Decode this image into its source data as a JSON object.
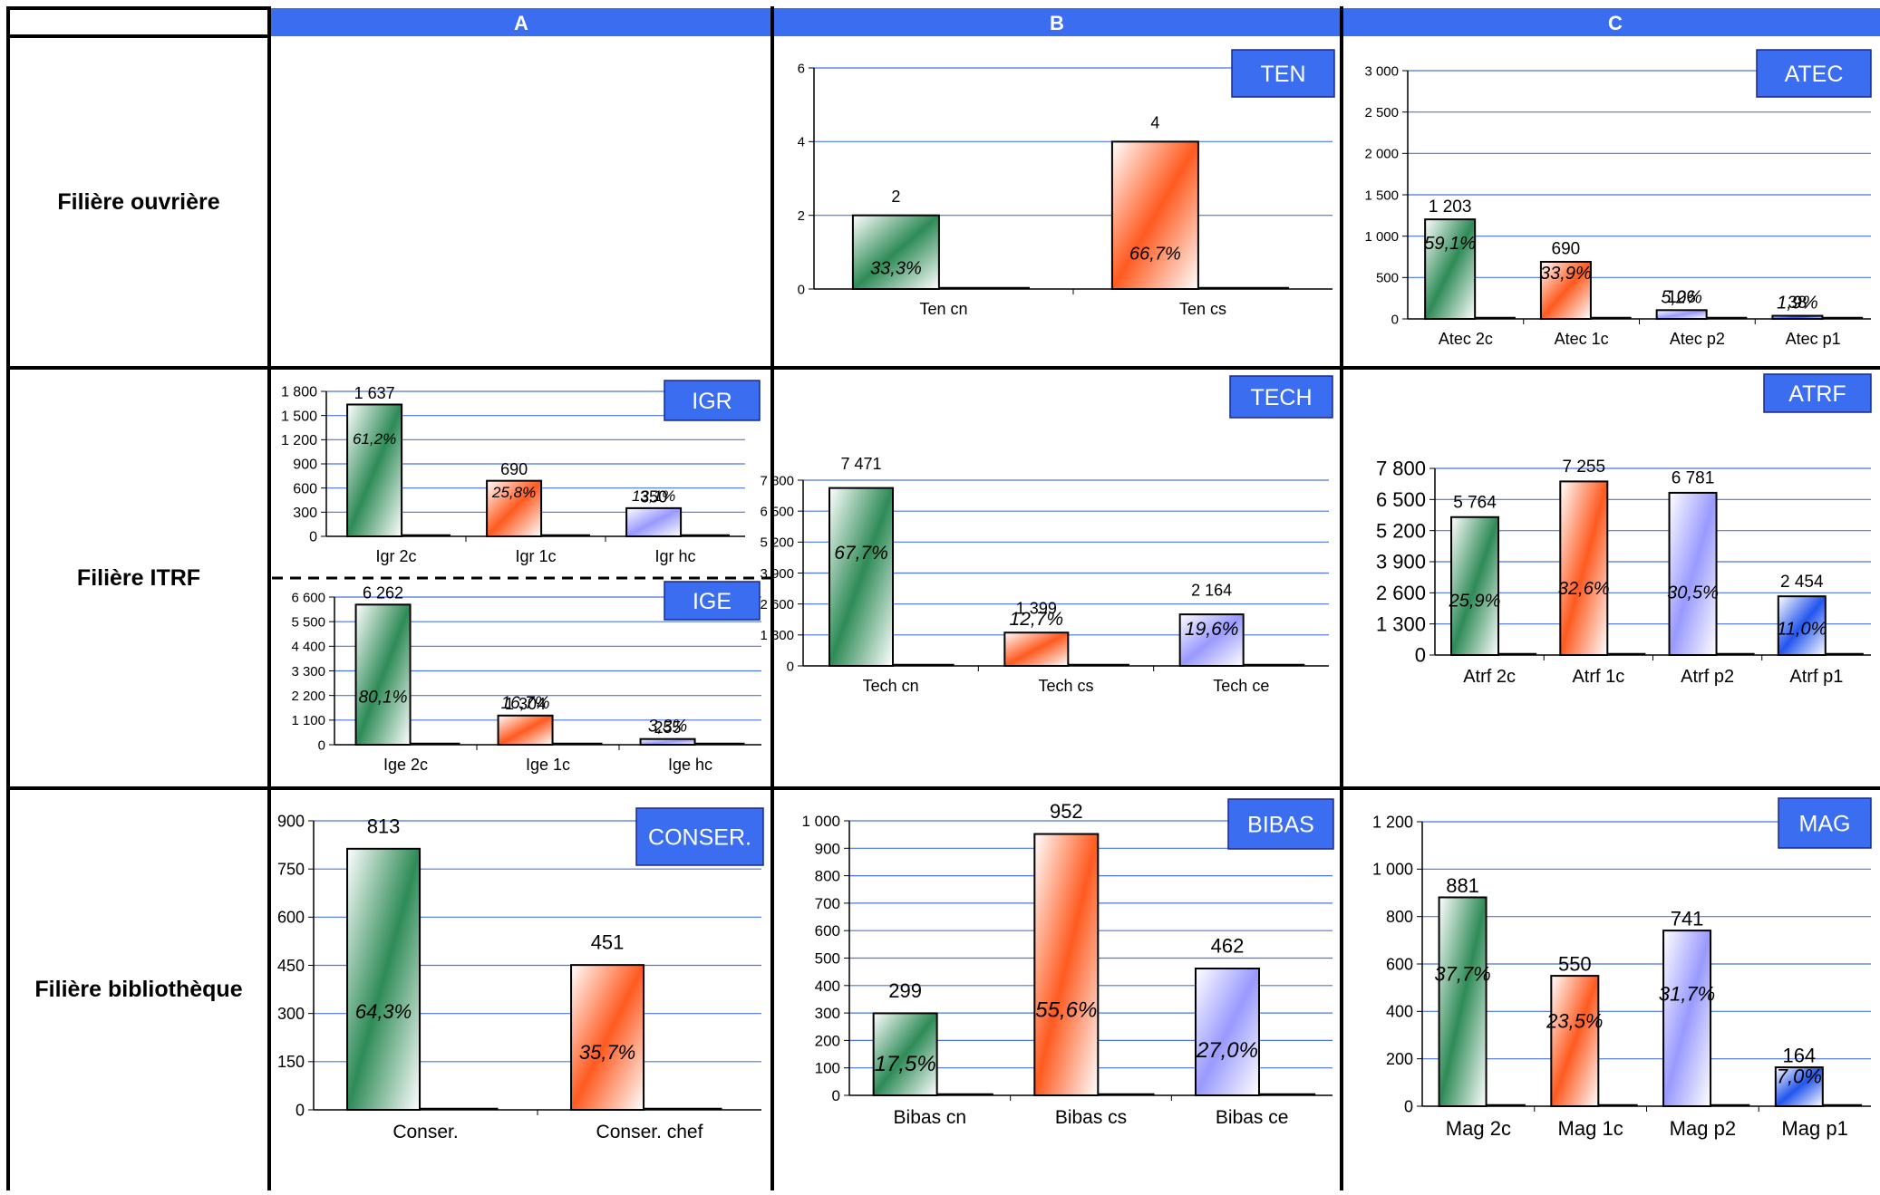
{
  "columns": [
    "A",
    "B",
    "C"
  ],
  "rows": [
    "Filière ouvrière",
    "Filière ITRF",
    "Filière bibliothèque"
  ],
  "colors": {
    "header_blue": "#3a6df0",
    "badge_blue": "#3a6df0",
    "grid_blue": "#4a74e8",
    "green": "#2e8b57",
    "orange": "#ff5a1f",
    "lavender": "#9999ff",
    "blue": "#2255ee"
  },
  "chart_data": [
    {
      "id": "ten",
      "type": "bar",
      "badge": "TEN",
      "categories": [
        "Ten cn",
        "Ten cs"
      ],
      "values": [
        2,
        4
      ],
      "value_labels": [
        "2",
        "4"
      ],
      "percents": [
        "33,3%",
        "66,7%"
      ],
      "yticks": [
        "0",
        "2",
        "4",
        "6"
      ],
      "ylim": [
        0,
        6
      ],
      "fills": [
        "green",
        "orange"
      ]
    },
    {
      "id": "atec",
      "type": "bar",
      "badge": "ATEC",
      "categories": [
        "Atec 2c",
        "Atec 1c",
        "Atec p2",
        "Atec p1"
      ],
      "values": [
        1203,
        690,
        106,
        38
      ],
      "value_labels": [
        "1 203",
        "690",
        "106",
        "38"
      ],
      "percents": [
        "59,1%",
        "33,9%",
        "5,2%",
        "1,9%"
      ],
      "yticks": [
        "0",
        "500",
        "1 000",
        "1 500",
        "2 000",
        "2 500",
        "3 000"
      ],
      "ylim": [
        0,
        3000
      ],
      "fills": [
        "green",
        "orange",
        "lavender",
        "blue"
      ]
    },
    {
      "id": "igr",
      "type": "bar",
      "badge": "IGR",
      "categories": [
        "Igr 2c",
        "Igr 1c",
        "Igr hc"
      ],
      "values": [
        1637,
        690,
        350
      ],
      "value_labels": [
        "1 637",
        "690",
        "350"
      ],
      "percents": [
        "61,2%",
        "25,8%",
        "13,1%"
      ],
      "yticks": [
        "0",
        "300",
        "600",
        "900",
        "1 200",
        "1 500",
        "1 800"
      ],
      "ylim": [
        0,
        1800
      ],
      "fills": [
        "green",
        "orange",
        "lavender"
      ]
    },
    {
      "id": "ige",
      "type": "bar",
      "badge": "IGE",
      "categories": [
        "Ige 2c",
        "Ige 1c",
        "Ige hc"
      ],
      "values": [
        6262,
        1304,
        255
      ],
      "value_labels": [
        "6 262",
        "1 304",
        "255"
      ],
      "percents": [
        "80,1%",
        "16,7%",
        "3,3%"
      ],
      "yticks": [
        "0",
        "1 100",
        "2 200",
        "3 300",
        "4 400",
        "5 500",
        "6 600"
      ],
      "ylim": [
        0,
        6600
      ],
      "fills": [
        "green",
        "orange",
        "lavender"
      ]
    },
    {
      "id": "tech",
      "type": "bar",
      "badge": "TECH",
      "categories": [
        "Tech cn",
        "Tech cs",
        "Tech ce"
      ],
      "values": [
        7471,
        1399,
        2164
      ],
      "value_labels": [
        "7 471",
        "1 399",
        "2 164"
      ],
      "percents": [
        "67,7%",
        "12,7%",
        "19,6%"
      ],
      "yticks": [
        "0",
        "1 300",
        "2 600",
        "3 900",
        "5 200",
        "6 500",
        "7 800"
      ],
      "ylim": [
        0,
        7800
      ],
      "fills": [
        "green",
        "orange",
        "lavender"
      ]
    },
    {
      "id": "atrf",
      "type": "bar",
      "badge": "ATRF",
      "categories": [
        "Atrf 2c",
        "Atrf 1c",
        "Atrf p2",
        "Atrf p1"
      ],
      "values": [
        5764,
        7255,
        6781,
        2454
      ],
      "value_labels": [
        "5 764",
        "7 255",
        "6 781",
        "2 454"
      ],
      "percents": [
        "25,9%",
        "32,6%",
        "30,5%",
        "11,0%"
      ],
      "yticks": [
        "0",
        "1 300",
        "2 600",
        "3 900",
        "5 200",
        "6 500",
        "7 800"
      ],
      "ylim": [
        0,
        7800
      ],
      "fills": [
        "green",
        "orange",
        "lavender",
        "blue"
      ]
    },
    {
      "id": "conser",
      "type": "bar",
      "badge": "CONSER.",
      "categories": [
        "Conser.",
        "Conser. chef"
      ],
      "values": [
        813,
        451
      ],
      "value_labels": [
        "813",
        "451"
      ],
      "percents": [
        "64,3%",
        "35,7%"
      ],
      "yticks": [
        "0",
        "150",
        "300",
        "450",
        "600",
        "750",
        "900"
      ],
      "ylim": [
        0,
        900
      ],
      "fills": [
        "green",
        "orange"
      ]
    },
    {
      "id": "bibas",
      "type": "bar",
      "badge": "BIBAS",
      "categories": [
        "Bibas cn",
        "Bibas cs",
        "Bibas ce"
      ],
      "values": [
        299,
        952,
        462
      ],
      "value_labels": [
        "299",
        "952",
        "462"
      ],
      "percents": [
        "17,5%",
        "55,6%",
        "27,0%"
      ],
      "yticks": [
        "0",
        "100",
        "200",
        "300",
        "400",
        "500",
        "600",
        "700",
        "800",
        "900",
        "1 000"
      ],
      "ylim": [
        0,
        1000
      ],
      "fills": [
        "green",
        "orange",
        "lavender"
      ]
    },
    {
      "id": "mag",
      "type": "bar",
      "badge": "MAG",
      "categories": [
        "Mag 2c",
        "Mag 1c",
        "Mag p2",
        "Mag p1"
      ],
      "values": [
        881,
        550,
        741,
        164
      ],
      "value_labels": [
        "881",
        "550",
        "741",
        "164"
      ],
      "percents": [
        "37,7%",
        "23,5%",
        "31,7%",
        "7,0%"
      ],
      "yticks": [
        "0",
        "200",
        "400",
        "600",
        "800",
        "1 000",
        "1 200"
      ],
      "ylim": [
        0,
        1200
      ],
      "fills": [
        "green",
        "orange",
        "lavender",
        "blue"
      ]
    }
  ]
}
